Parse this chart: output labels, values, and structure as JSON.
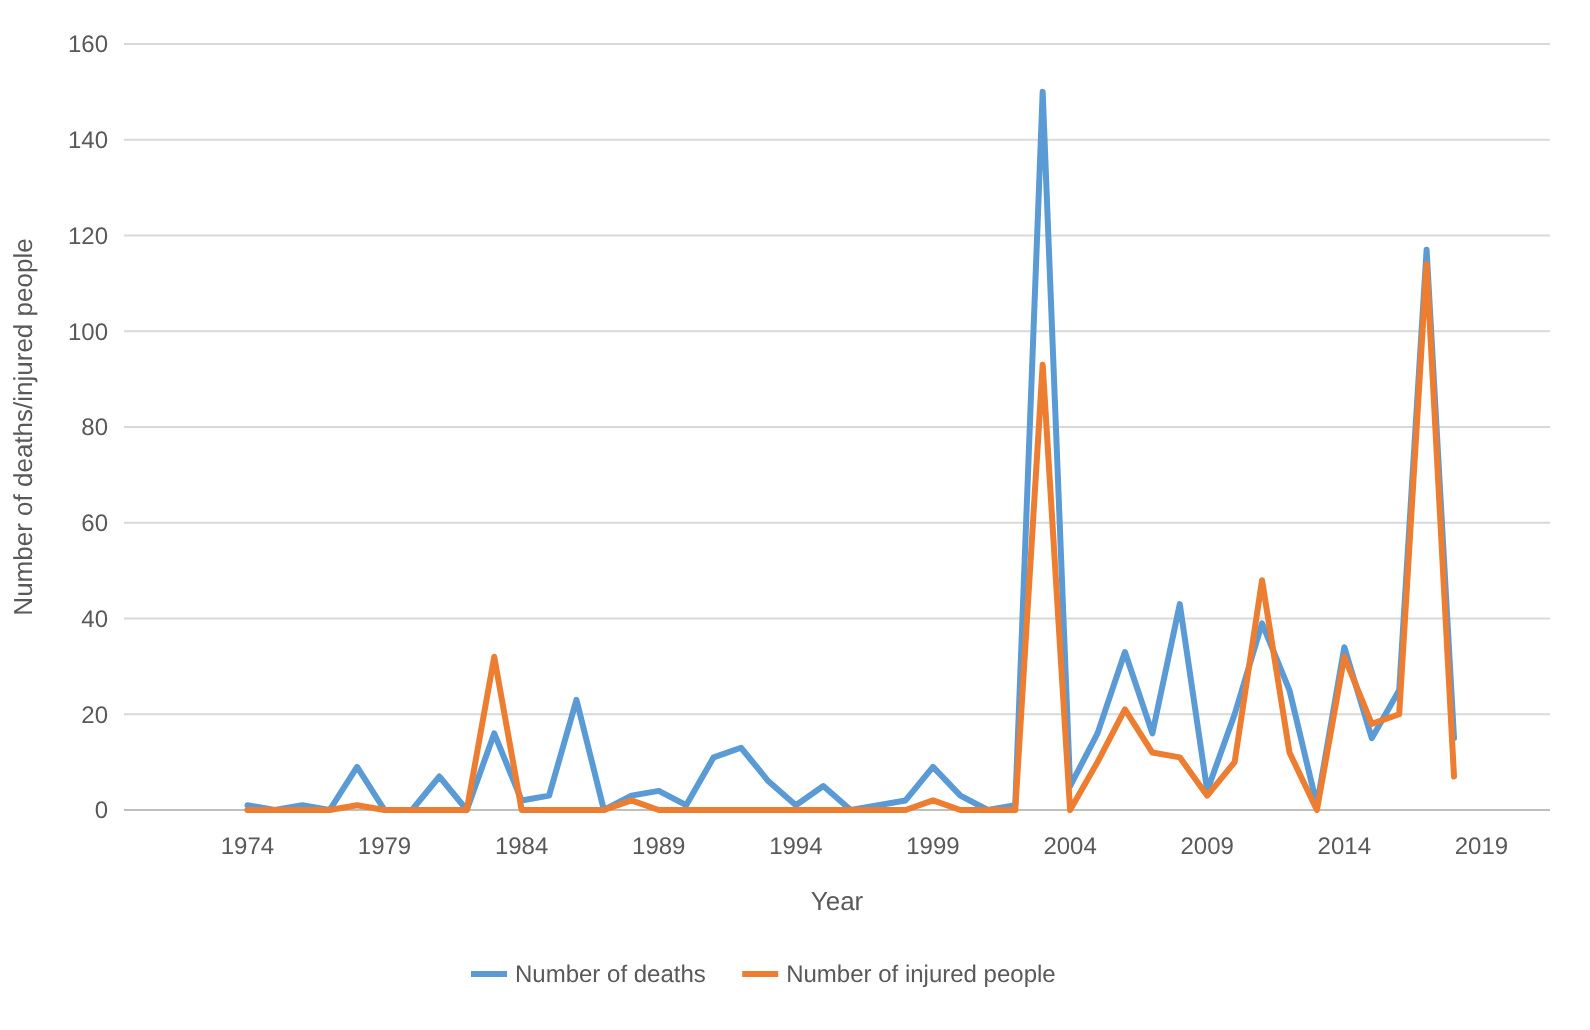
{
  "chart_data": {
    "type": "line",
    "xlabel": "Year",
    "ylabel": "Number of deaths/injured people",
    "x": [
      1974,
      1975,
      1976,
      1977,
      1978,
      1979,
      1980,
      1981,
      1982,
      1983,
      1984,
      1985,
      1986,
      1987,
      1988,
      1989,
      1990,
      1991,
      1992,
      1993,
      1994,
      1995,
      1996,
      1997,
      1998,
      1999,
      2000,
      2001,
      2002,
      2003,
      2004,
      2005,
      2006,
      2007,
      2008,
      2009,
      2010,
      2011,
      2012,
      2013,
      2014,
      2015,
      2016,
      2017,
      2018
    ],
    "series": [
      {
        "name": "Number of deaths",
        "color": "#5b9bd5",
        "values": [
          1,
          0,
          1,
          0,
          9,
          0,
          0,
          7,
          0,
          16,
          2,
          3,
          23,
          0,
          3,
          4,
          1,
          11,
          13,
          6,
          1,
          5,
          0,
          1,
          2,
          9,
          3,
          0,
          1,
          150,
          5,
          16,
          33,
          16,
          43,
          4,
          20,
          39,
          25,
          1,
          34,
          15,
          25,
          117,
          15
        ]
      },
      {
        "name": "Number of injured people",
        "color": "#ed7d31",
        "values": [
          0,
          0,
          0,
          0,
          1,
          0,
          0,
          0,
          0,
          32,
          0,
          0,
          0,
          0,
          2,
          0,
          0,
          0,
          0,
          0,
          0,
          0,
          0,
          0,
          0,
          2,
          0,
          0,
          0,
          93,
          0,
          10,
          21,
          12,
          11,
          3,
          10,
          48,
          12,
          0,
          32,
          18,
          20,
          114,
          7
        ]
      }
    ],
    "xlim": [
      1969.5,
      2021.5
    ],
    "xticks": [
      1974,
      1979,
      1984,
      1989,
      1994,
      1999,
      2004,
      2009,
      2014,
      2019
    ],
    "ylim": [
      0,
      160
    ],
    "yticks": [
      0,
      20,
      40,
      60,
      80,
      100,
      120,
      140,
      160
    ],
    "grid": "y",
    "legend": "bottom",
    "marker": "none",
    "line_style": "solid"
  }
}
